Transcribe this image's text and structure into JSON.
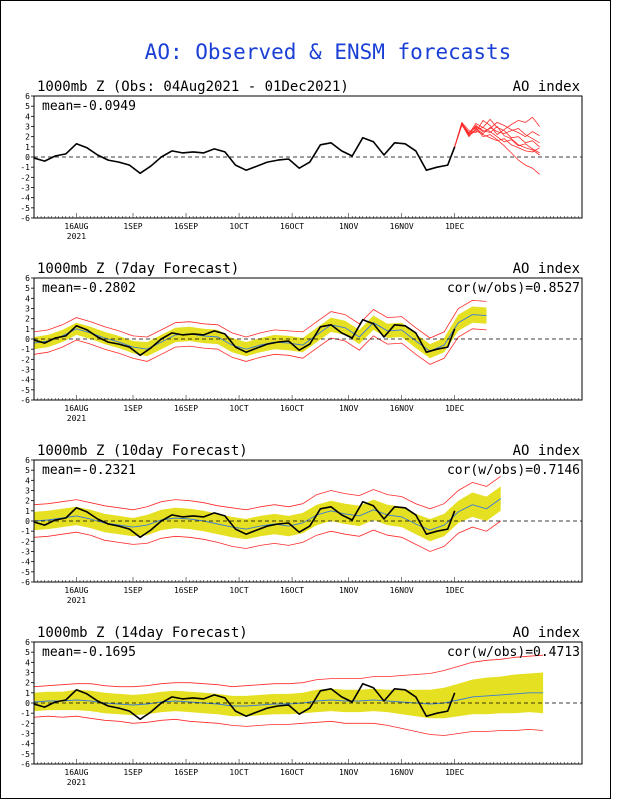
{
  "page_title": "AO: Observed & ENSM forecasts",
  "colors": {
    "title": "#1a3fd6",
    "obs": "#000000",
    "band": "#e6e022",
    "envelope": "#ff2a2a",
    "mean": "#3b7ad6",
    "grid": "#000000"
  },
  "chart_data": [
    {
      "type": "line",
      "title": "1000mb Z (Obs: 04Aug2021 - 01Dec2021)",
      "right_title": "AO index",
      "mean_label": "mean=-0.0949",
      "cor_label": "",
      "ylim": [
        -6,
        6
      ],
      "yticks": [
        6,
        5,
        4,
        3,
        2,
        1,
        0,
        -1,
        -2,
        -3,
        -4,
        -5,
        -6
      ],
      "xlim": [
        0,
        155
      ],
      "xticks": [
        {
          "day": 12,
          "label": "16AUG",
          "sub": "2021"
        },
        {
          "day": 28,
          "label": "1SEP",
          "sub": ""
        },
        {
          "day": 43,
          "label": "16SEP",
          "sub": ""
        },
        {
          "day": 58,
          "label": "1OCT",
          "sub": ""
        },
        {
          "day": 73,
          "label": "16OCT",
          "sub": ""
        },
        {
          "day": 89,
          "label": "1NOV",
          "sub": ""
        },
        {
          "day": 104,
          "label": "16NOV",
          "sub": ""
        },
        {
          "day": 119,
          "label": "1DEC",
          "sub": ""
        }
      ],
      "observed": {
        "x": [
          0,
          3,
          6,
          9,
          12,
          15,
          18,
          21,
          24,
          27,
          30,
          33,
          36,
          39,
          42,
          45,
          48,
          51,
          54,
          57,
          60,
          63,
          66,
          69,
          72,
          75,
          78,
          81,
          84,
          87,
          90,
          93,
          96,
          99,
          102,
          105,
          108,
          111,
          114,
          117,
          119
        ],
        "y": [
          -0.1,
          -0.4,
          0.1,
          0.3,
          1.3,
          0.9,
          0.2,
          -0.3,
          -0.5,
          -0.8,
          -1.6,
          -0.9,
          0.0,
          0.6,
          0.4,
          0.5,
          0.4,
          0.8,
          0.5,
          -0.8,
          -1.3,
          -0.9,
          -0.5,
          -0.3,
          -0.2,
          -1.1,
          -0.5,
          1.2,
          1.4,
          0.6,
          0.1,
          1.9,
          1.5,
          0.2,
          1.4,
          1.3,
          0.6,
          -1.3,
          -1.0,
          -0.8,
          1.0
        ]
      },
      "ensemble": {
        "x": [
          119,
          121,
          123,
          125,
          127,
          129,
          131,
          133,
          135,
          137,
          139,
          141,
          143
        ],
        "members": [
          [
            1.0,
            3.3,
            2.2,
            3.1,
            2.6,
            2.4,
            3.0,
            2.1,
            1.8,
            1.2,
            0.9,
            0.7,
            0.2
          ],
          [
            1.0,
            3.2,
            2.0,
            2.8,
            2.3,
            2.9,
            2.5,
            2.3,
            2.6,
            2.8,
            2.2,
            1.8,
            1.4
          ],
          [
            1.0,
            3.4,
            2.6,
            2.4,
            3.6,
            3.1,
            2.2,
            2.7,
            3.2,
            3.6,
            3.4,
            3.9,
            3.0
          ],
          [
            1.0,
            3.1,
            2.4,
            2.9,
            2.0,
            2.2,
            1.7,
            1.1,
            0.4,
            -0.3,
            -0.8,
            -1.1,
            -1.7
          ],
          [
            1.0,
            3.3,
            2.3,
            3.3,
            2.9,
            3.7,
            2.9,
            2.6,
            1.9,
            2.0,
            1.4,
            1.6,
            1.0
          ],
          [
            1.0,
            3.2,
            2.1,
            2.6,
            2.2,
            1.9,
            1.6,
            1.8,
            1.2,
            0.9,
            0.6,
            0.5,
            0.9
          ],
          [
            1.0,
            3.3,
            2.4,
            3.0,
            2.5,
            2.8,
            3.4,
            3.1,
            2.7,
            2.4,
            2.0,
            2.5,
            2.1
          ],
          [
            1.0,
            3.2,
            2.2,
            2.7,
            2.9,
            2.5,
            2.0,
            1.5,
            1.7,
            1.1,
            1.3,
            0.8,
            0.4
          ]
        ]
      }
    },
    {
      "type": "line",
      "title": "1000mb Z (7day Forecast)",
      "right_title": "AO index",
      "mean_label": "mean=-0.2802",
      "cor_label": "cor(w/obs)=0.8527",
      "ylim": [
        -6,
        6
      ],
      "yticks": [
        6,
        5,
        4,
        3,
        2,
        1,
        0,
        -1,
        -2,
        -3,
        -4,
        -5,
        -6
      ],
      "xlim": [
        0,
        155
      ],
      "xticks": [
        {
          "day": 12,
          "label": "16AUG",
          "sub": "2021"
        },
        {
          "day": 28,
          "label": "1SEP",
          "sub": ""
        },
        {
          "day": 43,
          "label": "16SEP",
          "sub": ""
        },
        {
          "day": 58,
          "label": "1OCT",
          "sub": ""
        },
        {
          "day": 73,
          "label": "16OCT",
          "sub": ""
        },
        {
          "day": 89,
          "label": "1NOV",
          "sub": ""
        },
        {
          "day": 104,
          "label": "16NOV",
          "sub": ""
        },
        {
          "day": 119,
          "label": "1DEC",
          "sub": ""
        }
      ],
      "observed": {
        "x": [
          0,
          3,
          6,
          9,
          12,
          15,
          18,
          21,
          24,
          27,
          30,
          33,
          36,
          39,
          42,
          45,
          48,
          51,
          54,
          57,
          60,
          63,
          66,
          69,
          72,
          75,
          78,
          81,
          84,
          87,
          90,
          93,
          96,
          99,
          102,
          105,
          108,
          111,
          114,
          117,
          119
        ],
        "y": [
          -0.1,
          -0.4,
          0.1,
          0.3,
          1.3,
          0.9,
          0.2,
          -0.3,
          -0.5,
          -0.8,
          -1.6,
          -0.9,
          0.0,
          0.6,
          0.4,
          0.5,
          0.4,
          0.8,
          0.5,
          -0.8,
          -1.3,
          -0.9,
          -0.5,
          -0.3,
          -0.2,
          -1.1,
          -0.5,
          1.2,
          1.4,
          0.6,
          0.1,
          1.9,
          1.5,
          0.2,
          1.4,
          1.3,
          0.6,
          -1.3,
          -1.0,
          -0.8,
          1.0
        ]
      },
      "forecast": {
        "x": [
          0,
          4,
          8,
          12,
          16,
          20,
          24,
          28,
          32,
          36,
          40,
          44,
          48,
          52,
          56,
          60,
          64,
          68,
          72,
          76,
          80,
          84,
          88,
          92,
          96,
          100,
          104,
          108,
          112,
          116,
          120,
          124,
          128
        ],
        "mean": [
          -0.4,
          -0.2,
          0.3,
          1.0,
          0.6,
          0.1,
          -0.3,
          -0.8,
          -1.0,
          -0.3,
          0.4,
          0.5,
          0.3,
          0.2,
          -0.6,
          -1.0,
          -0.6,
          -0.3,
          -0.4,
          -0.6,
          0.4,
          1.4,
          1.1,
          0.2,
          1.6,
          0.8,
          0.9,
          -0.2,
          -1.2,
          -0.6,
          1.6,
          2.4,
          2.3
        ],
        "band_half": [
          0.6,
          0.6,
          0.6,
          0.6,
          0.6,
          0.6,
          0.6,
          0.6,
          0.7,
          0.7,
          0.7,
          0.7,
          0.7,
          0.7,
          0.7,
          0.7,
          0.7,
          0.7,
          0.7,
          0.7,
          0.7,
          0.7,
          0.7,
          0.7,
          0.7,
          0.7,
          0.7,
          0.7,
          0.7,
          0.7,
          0.8,
          0.8,
          0.8
        ],
        "env_half": [
          1.1,
          1.1,
          1.1,
          1.1,
          1.1,
          1.1,
          1.1,
          1.1,
          1.2,
          1.2,
          1.2,
          1.2,
          1.2,
          1.2,
          1.2,
          1.2,
          1.2,
          1.2,
          1.2,
          1.3,
          1.3,
          1.3,
          1.3,
          1.3,
          1.3,
          1.3,
          1.3,
          1.3,
          1.3,
          1.3,
          1.4,
          1.4,
          1.4
        ]
      }
    },
    {
      "type": "line",
      "title": "1000mb Z (10day Forecast)",
      "right_title": "AO index",
      "mean_label": "mean=-0.2321",
      "cor_label": "cor(w/obs)=0.7146",
      "ylim": [
        -6,
        6
      ],
      "yticks": [
        6,
        5,
        4,
        3,
        2,
        1,
        0,
        -1,
        -2,
        -3,
        -4,
        -5,
        -6
      ],
      "xlim": [
        0,
        155
      ],
      "xticks": [
        {
          "day": 12,
          "label": "16AUG",
          "sub": "2021"
        },
        {
          "day": 28,
          "label": "1SEP",
          "sub": ""
        },
        {
          "day": 43,
          "label": "16SEP",
          "sub": ""
        },
        {
          "day": 58,
          "label": "1OCT",
          "sub": ""
        },
        {
          "day": 73,
          "label": "16OCT",
          "sub": ""
        },
        {
          "day": 89,
          "label": "1NOV",
          "sub": ""
        },
        {
          "day": 104,
          "label": "16NOV",
          "sub": ""
        },
        {
          "day": 119,
          "label": "1DEC",
          "sub": ""
        }
      ],
      "observed": {
        "x": [
          0,
          3,
          6,
          9,
          12,
          15,
          18,
          21,
          24,
          27,
          30,
          33,
          36,
          39,
          42,
          45,
          48,
          51,
          54,
          57,
          60,
          63,
          66,
          69,
          72,
          75,
          78,
          81,
          84,
          87,
          90,
          93,
          96,
          99,
          102,
          105,
          108,
          111,
          114,
          117,
          119
        ],
        "y": [
          -0.1,
          -0.4,
          0.1,
          0.3,
          1.3,
          0.9,
          0.2,
          -0.3,
          -0.5,
          -0.8,
          -1.6,
          -0.9,
          0.0,
          0.6,
          0.4,
          0.5,
          0.4,
          0.8,
          0.5,
          -0.8,
          -1.3,
          -0.9,
          -0.5,
          -0.3,
          -0.2,
          -1.1,
          -0.5,
          1.2,
          1.4,
          0.6,
          0.1,
          1.9,
          1.5,
          0.2,
          1.4,
          1.3,
          0.6,
          -1.3,
          -1.0,
          -0.8,
          1.0
        ]
      },
      "forecast": {
        "x": [
          0,
          4,
          8,
          12,
          16,
          20,
          24,
          28,
          32,
          36,
          40,
          44,
          48,
          52,
          56,
          60,
          64,
          68,
          72,
          76,
          80,
          84,
          88,
          92,
          96,
          100,
          104,
          108,
          112,
          116,
          120,
          124,
          128,
          132
        ],
        "mean": [
          0.0,
          0.1,
          0.3,
          0.5,
          0.2,
          -0.2,
          -0.4,
          -0.6,
          -0.4,
          0.1,
          0.3,
          0.2,
          0.0,
          -0.3,
          -0.6,
          -0.8,
          -0.5,
          -0.3,
          -0.5,
          -0.2,
          0.6,
          1.0,
          0.7,
          0.5,
          1.1,
          0.6,
          0.4,
          -0.3,
          -0.9,
          -0.4,
          0.9,
          1.6,
          1.2,
          2.2
        ],
        "band_half": [
          0.9,
          0.9,
          0.9,
          0.9,
          0.9,
          0.9,
          0.9,
          0.9,
          1.0,
          1.0,
          1.0,
          1.0,
          1.0,
          1.0,
          1.0,
          1.0,
          1.0,
          1.0,
          1.0,
          1.0,
          1.0,
          1.0,
          1.0,
          1.0,
          1.0,
          1.0,
          1.0,
          1.0,
          1.1,
          1.1,
          1.1,
          1.2,
          1.2,
          1.2
        ],
        "env_half": [
          1.6,
          1.6,
          1.6,
          1.6,
          1.6,
          1.7,
          1.7,
          1.7,
          1.8,
          1.8,
          1.8,
          1.8,
          1.8,
          1.8,
          1.9,
          1.9,
          1.9,
          1.9,
          1.9,
          1.9,
          2.0,
          2.0,
          2.0,
          2.0,
          2.0,
          2.0,
          2.0,
          2.0,
          2.1,
          2.1,
          2.1,
          2.2,
          2.2,
          2.2
        ]
      }
    },
    {
      "type": "line",
      "title": "1000mb Z (14day Forecast)",
      "right_title": "AO index",
      "mean_label": "mean=-0.1695",
      "cor_label": "cor(w/obs)=0.4713",
      "ylim": [
        -6,
        6
      ],
      "yticks": [
        6,
        5,
        4,
        3,
        2,
        1,
        0,
        -1,
        -2,
        -3,
        -4,
        -5,
        -6
      ],
      "xlim": [
        0,
        155
      ],
      "xticks": [
        {
          "day": 12,
          "label": "16AUG",
          "sub": "2021"
        },
        {
          "day": 28,
          "label": "1SEP",
          "sub": ""
        },
        {
          "day": 43,
          "label": "16SEP",
          "sub": ""
        },
        {
          "day": 58,
          "label": "1OCT",
          "sub": ""
        },
        {
          "day": 73,
          "label": "16OCT",
          "sub": ""
        },
        {
          "day": 89,
          "label": "1NOV",
          "sub": ""
        },
        {
          "day": 104,
          "label": "16NOV",
          "sub": ""
        },
        {
          "day": 119,
          "label": "1DEC",
          "sub": ""
        }
      ],
      "observed": {
        "x": [
          0,
          3,
          6,
          9,
          12,
          15,
          18,
          21,
          24,
          27,
          30,
          33,
          36,
          39,
          42,
          45,
          48,
          51,
          54,
          57,
          60,
          63,
          66,
          69,
          72,
          75,
          78,
          81,
          84,
          87,
          90,
          93,
          96,
          99,
          102,
          105,
          108,
          111,
          114,
          117,
          119
        ],
        "y": [
          -0.1,
          -0.4,
          0.1,
          0.3,
          1.3,
          0.9,
          0.2,
          -0.3,
          -0.5,
          -0.8,
          -1.6,
          -0.9,
          0.0,
          0.6,
          0.4,
          0.5,
          0.4,
          0.8,
          0.5,
          -0.8,
          -1.3,
          -0.9,
          -0.5,
          -0.3,
          -0.2,
          -1.1,
          -0.5,
          1.2,
          1.4,
          0.6,
          0.1,
          1.9,
          1.5,
          0.2,
          1.4,
          1.3,
          0.6,
          -1.3,
          -1.0,
          -0.8,
          1.0
        ]
      },
      "forecast": {
        "x": [
          0,
          4,
          8,
          12,
          16,
          20,
          24,
          28,
          32,
          36,
          40,
          44,
          48,
          52,
          56,
          60,
          64,
          68,
          72,
          76,
          80,
          84,
          88,
          92,
          96,
          100,
          104,
          108,
          112,
          116,
          120,
          124,
          128,
          132,
          136,
          140,
          144
        ],
        "mean": [
          0.1,
          0.2,
          0.2,
          0.3,
          0.2,
          0.0,
          -0.1,
          -0.2,
          -0.1,
          0.1,
          0.2,
          0.1,
          0.0,
          -0.1,
          -0.3,
          -0.3,
          -0.2,
          -0.1,
          -0.1,
          0.0,
          0.2,
          0.3,
          0.2,
          0.2,
          0.3,
          0.2,
          0.1,
          0.0,
          -0.1,
          0.0,
          0.3,
          0.6,
          0.7,
          0.8,
          0.9,
          1.0,
          1.0
        ],
        "band_half": [
          0.9,
          0.9,
          0.9,
          1.0,
          1.0,
          1.0,
          1.0,
          1.0,
          1.0,
          1.0,
          1.0,
          1.0,
          1.0,
          1.0,
          1.0,
          1.0,
          1.0,
          1.0,
          1.0,
          1.0,
          1.1,
          1.1,
          1.1,
          1.1,
          1.1,
          1.1,
          1.2,
          1.3,
          1.4,
          1.5,
          1.6,
          1.7,
          1.8,
          1.8,
          1.9,
          1.9,
          2.0
        ],
        "env_half": [
          1.5,
          1.5,
          1.6,
          1.6,
          1.7,
          1.7,
          1.7,
          1.8,
          1.8,
          1.8,
          1.8,
          1.9,
          1.9,
          1.9,
          1.9,
          2.0,
          2.0,
          2.0,
          2.0,
          2.0,
          2.1,
          2.1,
          2.2,
          2.2,
          2.3,
          2.4,
          2.6,
          2.8,
          3.0,
          3.2,
          3.3,
          3.4,
          3.5,
          3.5,
          3.6,
          3.6,
          3.7
        ]
      }
    }
  ]
}
